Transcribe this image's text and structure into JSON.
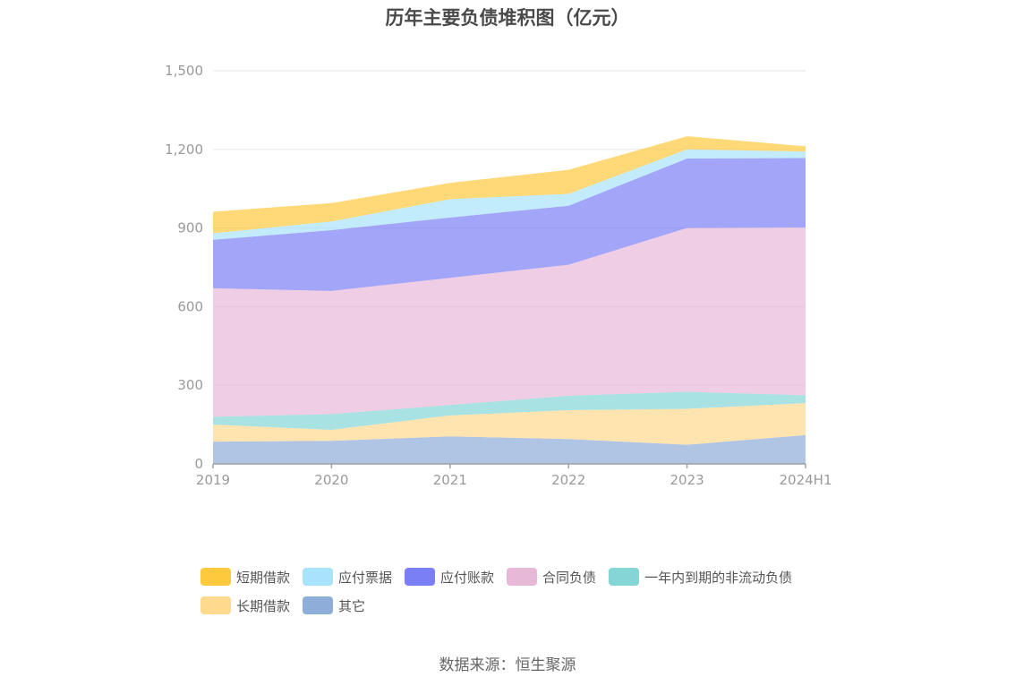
{
  "chart_data": {
    "type": "area",
    "stacked": true,
    "title": "历年主要负债堆积图（亿元）",
    "categories": [
      "2019",
      "2020",
      "2021",
      "2022",
      "2023",
      "2024H1"
    ],
    "ylim": [
      0,
      1500
    ],
    "yticks": [
      "0",
      "300",
      "600",
      "900",
      "1,200",
      "1,500"
    ],
    "grid": true,
    "legend_position": "bottom",
    "series": [
      {
        "name": "其它",
        "color": "#8fadd9",
        "values": [
          85,
          88,
          105,
          95,
          73,
          110
        ]
      },
      {
        "name": "长期借款",
        "color": "#ffd98e",
        "values": [
          65,
          42,
          80,
          110,
          137,
          122
        ]
      },
      {
        "name": "一年内到期的非流动负债",
        "color": "#84d6d6",
        "values": [
          30,
          60,
          40,
          55,
          65,
          30
        ]
      },
      {
        "name": "合同负债",
        "color": "#e8b8d8",
        "values": [
          490,
          470,
          485,
          500,
          625,
          640
        ]
      },
      {
        "name": "应付账款",
        "color": "#7b7ff5",
        "values": [
          185,
          232,
          230,
          225,
          265,
          265
        ]
      },
      {
        "name": "应付票据",
        "color": "#a8e3fb",
        "values": [
          25,
          33,
          70,
          45,
          35,
          25
        ]
      },
      {
        "name": "短期借款",
        "color": "#ffc93d",
        "values": [
          82,
          70,
          62,
          92,
          50,
          20
        ]
      }
    ]
  },
  "legend": {
    "rows": [
      [
        {
          "label": "短期借款",
          "color": "#ffc93d"
        },
        {
          "label": "应付票据",
          "color": "#a8e3fb"
        },
        {
          "label": "应付账款",
          "color": "#7b7ff5"
        },
        {
          "label": "合同负债",
          "color": "#e8b8d8"
        },
        {
          "label": "一年内到期的非流动负债",
          "color": "#84d6d6"
        }
      ],
      [
        {
          "label": "长期借款",
          "color": "#ffd98e"
        },
        {
          "label": "其它",
          "color": "#8fadd9"
        }
      ]
    ]
  },
  "source": "数据来源：恒生聚源"
}
